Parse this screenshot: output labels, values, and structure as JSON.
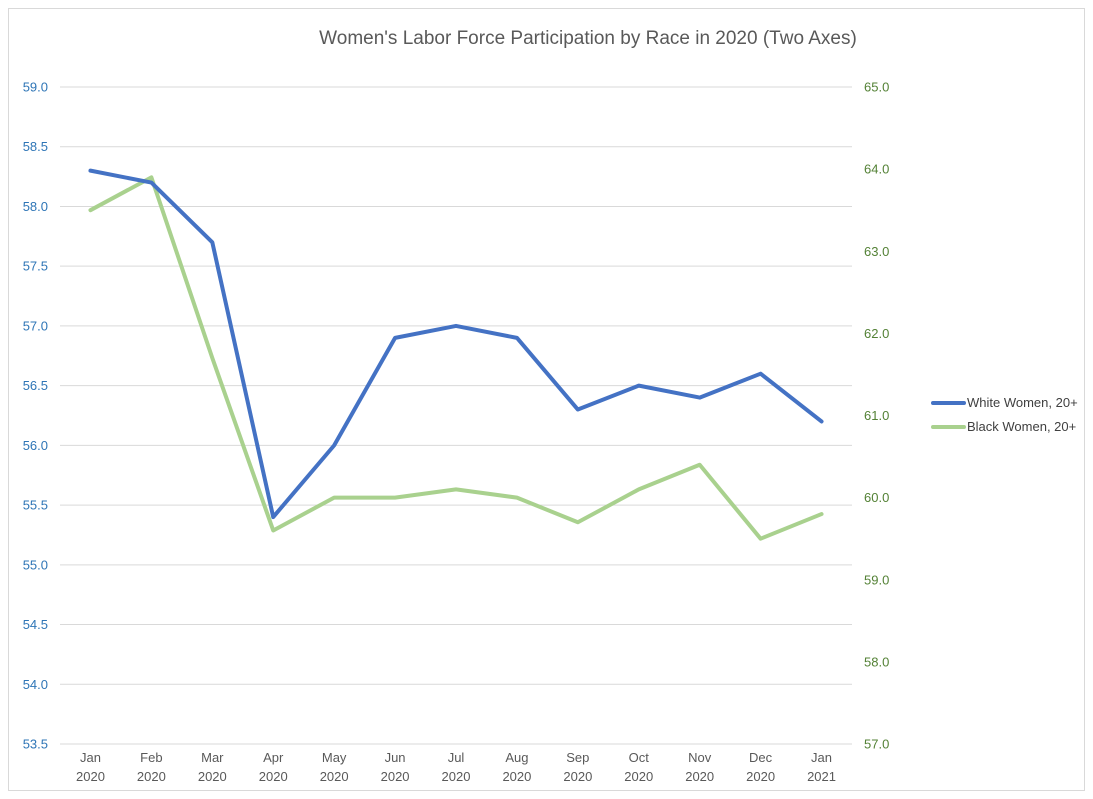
{
  "chart_data": {
    "type": "line",
    "title": "Women's Labor Force Participation by Race in 2020 (Two Axes)",
    "x_categories": [
      [
        "Jan",
        "2020"
      ],
      [
        "Feb",
        "2020"
      ],
      [
        "Mar",
        "2020"
      ],
      [
        "Apr",
        "2020"
      ],
      [
        "May",
        "2020"
      ],
      [
        "Jun",
        "2020"
      ],
      [
        "Jul",
        "2020"
      ],
      [
        "Aug",
        "2020"
      ],
      [
        "Sep",
        "2020"
      ],
      [
        "Oct",
        "2020"
      ],
      [
        "Nov",
        "2020"
      ],
      [
        "Dec",
        "2020"
      ],
      [
        "Jan",
        "2021"
      ]
    ],
    "series": [
      {
        "name": "White Women, 20+",
        "axis": "left",
        "color": "#4472C4",
        "values": [
          58.3,
          58.2,
          57.7,
          55.4,
          56.0,
          56.9,
          57.0,
          56.9,
          56.3,
          56.5,
          56.4,
          56.6,
          56.2
        ]
      },
      {
        "name": "Black Women, 20+",
        "axis": "right",
        "color": "#A9D18E",
        "values": [
          63.5,
          63.9,
          61.7,
          59.6,
          60.0,
          60.0,
          60.1,
          60.0,
          59.7,
          60.1,
          60.4,
          59.5,
          59.8
        ]
      }
    ],
    "left_axis": {
      "min": 53.5,
      "max": 59.0,
      "step": 0.5,
      "color": "#2E75B6",
      "ticks": [
        "59.0",
        "58.5",
        "58.0",
        "57.5",
        "57.0",
        "56.5",
        "56.0",
        "55.5",
        "55.0",
        "54.5",
        "54.0",
        "53.5"
      ]
    },
    "right_axis": {
      "min": 57.0,
      "max": 65.0,
      "step": 1.0,
      "color": "#538135",
      "ticks": [
        "65.0",
        "64.0",
        "63.0",
        "62.0",
        "61.0",
        "60.0",
        "59.0",
        "58.0",
        "57.0"
      ]
    },
    "legend_position": "right",
    "grid": true,
    "gridline_color": "#D9D9D9",
    "axis_label_color": "#595959"
  }
}
